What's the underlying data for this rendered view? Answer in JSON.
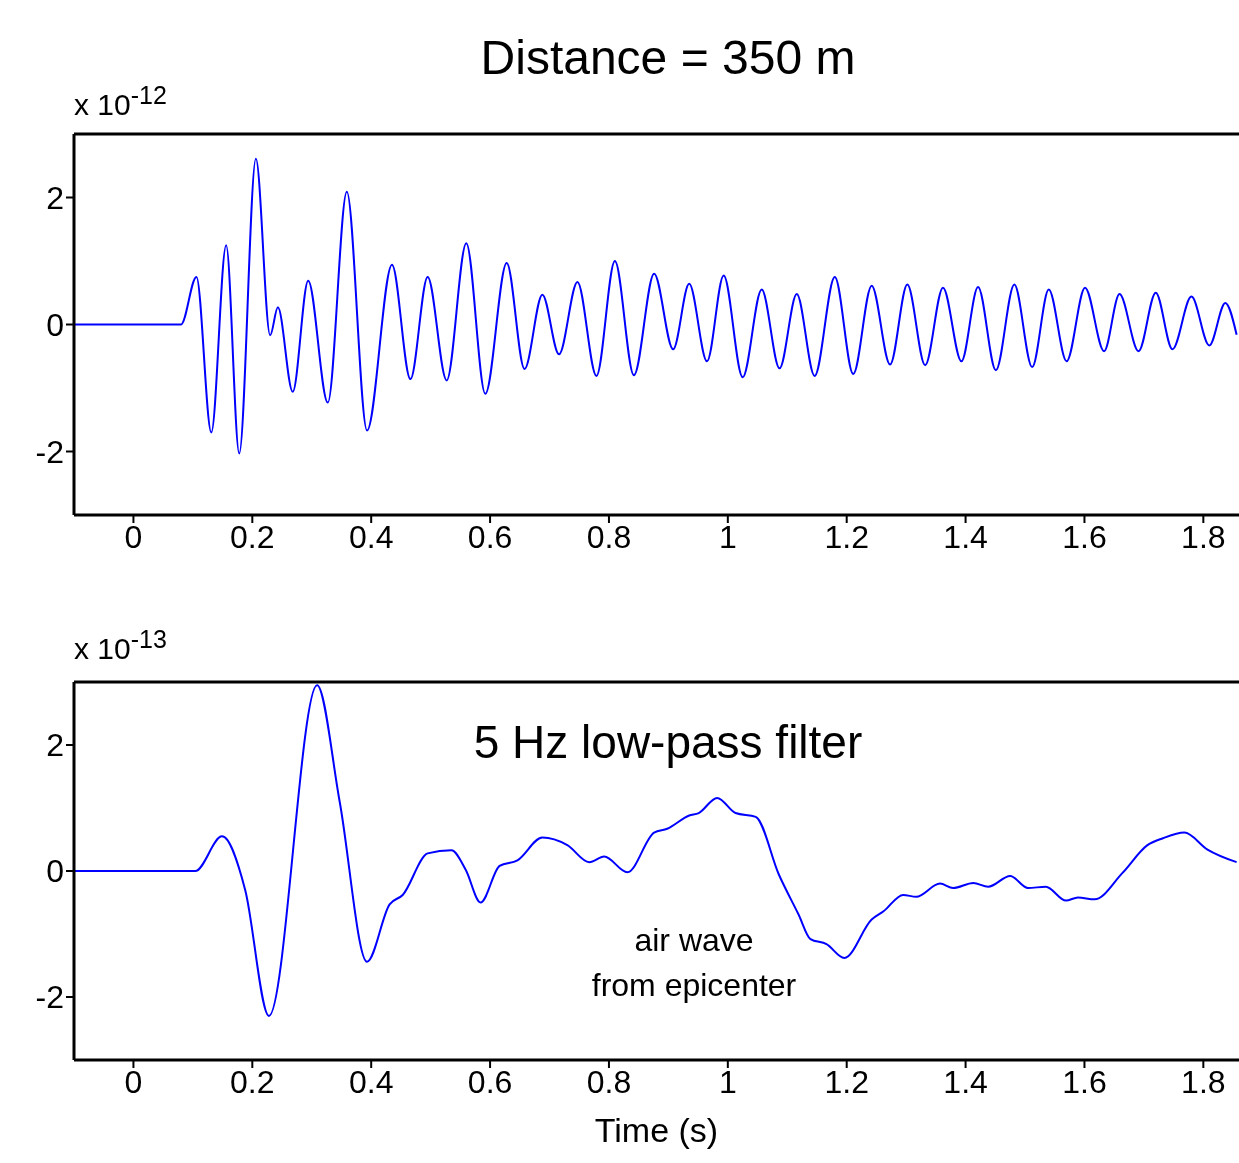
{
  "chart_data": [
    {
      "type": "line",
      "title": "Distance = 350 m",
      "annotations": [
        "x 10$^{-12}$"
      ],
      "xlim": [
        -0.1,
        1.86
      ],
      "xticks": [
        0,
        0.2,
        0.4,
        0.6,
        0.8,
        1,
        1.2,
        1.4,
        1.6,
        1.8
      ],
      "ylim": [
        -3,
        3
      ],
      "yticks": [
        -2,
        0,
        2
      ],
      "series": [
        {
          "color": "#0000ff",
          "x": [
            -0.1,
            0.08,
            0.106,
            0.131,
            0.156,
            0.178,
            0.206,
            0.23,
            0.243,
            0.268,
            0.294,
            0.327,
            0.359,
            0.393,
            0.435,
            0.466,
            0.495,
            0.527,
            0.56,
            0.592,
            0.628,
            0.658,
            0.688,
            0.716,
            0.747,
            0.779,
            0.81,
            0.842,
            0.876,
            0.908,
            0.935,
            0.965,
            0.993,
            1.025,
            1.057,
            1.087,
            1.116,
            1.146,
            1.18,
            1.211,
            1.242,
            1.273,
            1.302,
            1.332,
            1.362,
            1.393,
            1.421,
            1.451,
            1.482,
            1.512,
            1.54,
            1.57,
            1.601,
            1.633,
            1.659,
            1.691,
            1.72,
            1.748,
            1.78,
            1.81,
            1.837,
            1.856
          ],
          "values": [
            0,
            0,
            0.75,
            -1.7,
            1.25,
            -2.03,
            2.61,
            -0.17,
            0.27,
            -1.06,
            0.69,
            -1.23,
            2.09,
            -1.67,
            0.94,
            -0.86,
            0.75,
            -0.88,
            1.28,
            -1.09,
            0.97,
            -0.7,
            0.47,
            -0.47,
            0.67,
            -0.81,
            1.0,
            -0.8,
            0.8,
            -0.39,
            0.64,
            -0.58,
            0.77,
            -0.83,
            0.55,
            -0.69,
            0.48,
            -0.81,
            0.75,
            -0.78,
            0.61,
            -0.63,
            0.63,
            -0.64,
            0.58,
            -0.58,
            0.59,
            -0.72,
            0.63,
            -0.67,
            0.55,
            -0.58,
            0.58,
            -0.42,
            0.48,
            -0.42,
            0.5,
            -0.39,
            0.44,
            -0.33,
            0.34,
            -0.16
          ]
        }
      ]
    },
    {
      "type": "line",
      "xlabel": "Time (s)",
      "annotations": [
        "x 10$^{-13}$",
        "5 Hz low-pass filter",
        "air wave\nfrom epicenter"
      ],
      "xlim": [
        -0.1,
        1.86
      ],
      "xticks": [
        0,
        0.2,
        0.4,
        0.6,
        0.8,
        1,
        1.2,
        1.4,
        1.6,
        1.8
      ],
      "ylim": [
        -3,
        3
      ],
      "yticks": [
        -2,
        0,
        2
      ],
      "series": [
        {
          "color": "#0000ff",
          "x": [
            -0.1,
            0.104,
            0.149,
            0.188,
            0.228,
            0.309,
            0.347,
            0.393,
            0.431,
            0.453,
            0.495,
            0.535,
            0.559,
            0.584,
            0.616,
            0.646,
            0.688,
            0.73,
            0.767,
            0.792,
            0.831,
            0.876,
            0.898,
            0.935,
            0.951,
            0.982,
            1.013,
            1.047,
            1.086,
            1.119,
            1.139,
            1.166,
            1.196,
            1.242,
            1.262,
            1.295,
            1.317,
            1.357,
            1.379,
            1.413,
            1.438,
            1.475,
            1.505,
            1.535,
            1.569,
            1.589,
            1.617,
            1.664,
            1.706,
            1.732,
            1.768,
            1.807,
            1.856
          ],
          "values": [
            0,
            0,
            0.55,
            -0.3,
            -2.3,
            2.95,
            1.1,
            -1.44,
            -0.53,
            -0.38,
            0.28,
            0.33,
            0.02,
            -0.5,
            0.08,
            0.17,
            0.53,
            0.41,
            0.14,
            0.23,
            -0.02,
            0.61,
            0.67,
            0.88,
            0.92,
            1.16,
            0.92,
            0.86,
            -0.06,
            -0.69,
            -1.08,
            -1.16,
            -1.38,
            -0.77,
            -0.64,
            -0.38,
            -0.41,
            -0.2,
            -0.27,
            -0.19,
            -0.25,
            -0.08,
            -0.27,
            -0.25,
            -0.47,
            -0.42,
            -0.45,
            -0.03,
            0.41,
            0.52,
            0.61,
            0.34,
            0.14
          ]
        }
      ]
    }
  ]
}
